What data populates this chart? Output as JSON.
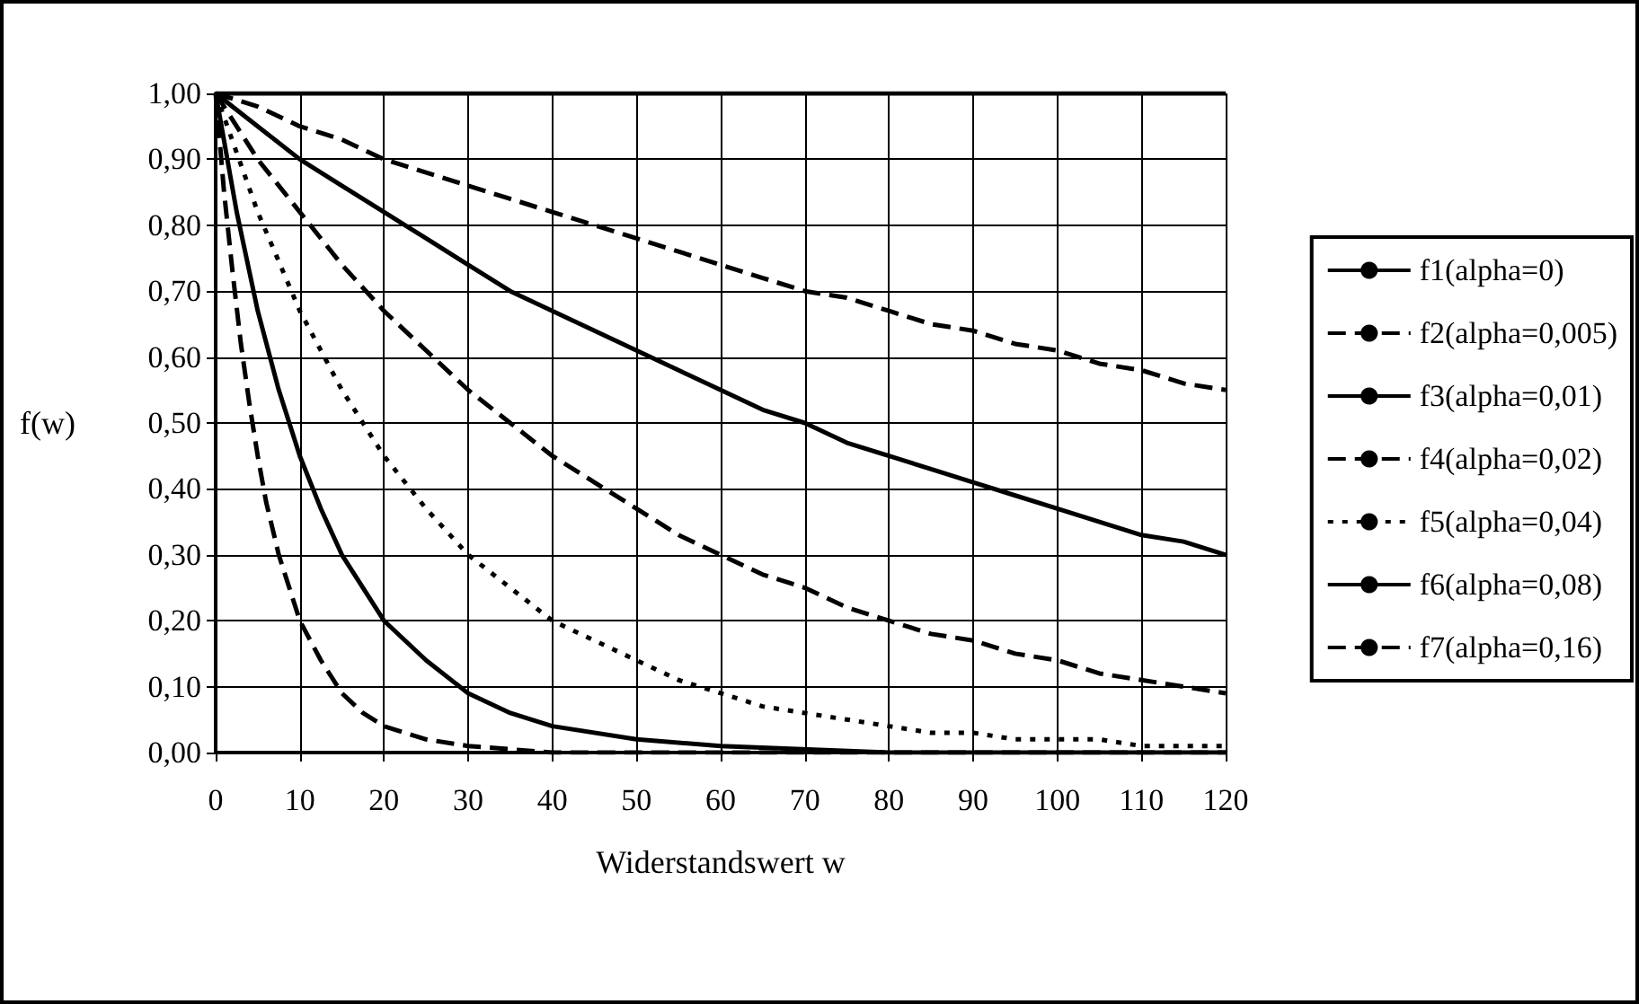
{
  "chart_data": {
    "type": "line",
    "xlabel": "Widerstandswert w",
    "ylabel": "f(w)",
    "x": [
      0,
      5,
      10,
      15,
      20,
      25,
      30,
      35,
      40,
      45,
      50,
      55,
      60,
      65,
      70,
      75,
      80,
      85,
      90,
      95,
      100,
      105,
      110,
      115,
      120
    ],
    "xlim": [
      0,
      120
    ],
    "xticks": [
      0,
      10,
      20,
      30,
      40,
      50,
      60,
      70,
      80,
      90,
      100,
      110,
      120
    ],
    "ylim": [
      0,
      1
    ],
    "yticks": [
      {
        "value": 0,
        "label": "0,00"
      },
      {
        "value": 0.1,
        "label": "0,10"
      },
      {
        "value": 0.2,
        "label": "0,20"
      },
      {
        "value": 0.3,
        "label": "0,30"
      },
      {
        "value": 0.4,
        "label": "0,40"
      },
      {
        "value": 0.5,
        "label": "0,50"
      },
      {
        "value": 0.6,
        "label": "0,60"
      },
      {
        "value": 0.7,
        "label": "0,70"
      },
      {
        "value": 0.8,
        "label": "0,80"
      },
      {
        "value": 0.9,
        "label": "0,90"
      },
      {
        "value": 1,
        "label": "1,00"
      }
    ],
    "grid": true,
    "legend": "right",
    "marker": "none",
    "series": [
      {
        "name": "f1(alpha=0)",
        "color": "#000000",
        "line_style": "solid",
        "values": [
          1,
          1,
          1,
          1,
          1,
          1,
          1,
          1,
          1,
          1,
          1,
          1,
          1,
          1,
          1,
          1,
          1,
          1,
          1,
          1,
          1,
          1,
          1,
          1,
          1
        ]
      },
      {
        "name": "f2(alpha=0,005)",
        "color": "#000000",
        "line_style": "dashed",
        "values": [
          1,
          0.98,
          0.95,
          0.93,
          0.9,
          0.88,
          0.86,
          0.84,
          0.82,
          0.8,
          0.78,
          0.76,
          0.74,
          0.72,
          0.7,
          0.69,
          0.67,
          0.65,
          0.64,
          0.62,
          0.61,
          0.59,
          0.58,
          0.56,
          0.55
        ]
      },
      {
        "name": "f3(alpha=0,01)",
        "color": "#000000",
        "line_style": "solid",
        "values": [
          1,
          0.95,
          0.9,
          0.86,
          0.82,
          0.78,
          0.74,
          0.7,
          0.67,
          0.64,
          0.61,
          0.58,
          0.55,
          0.52,
          0.5,
          0.47,
          0.45,
          0.43,
          0.41,
          0.39,
          0.37,
          0.35,
          0.33,
          0.32,
          0.3
        ]
      },
      {
        "name": "f4(alpha=0,02)",
        "color": "#000000",
        "line_style": "dashed",
        "values": [
          1,
          0.9,
          0.82,
          0.74,
          0.67,
          0.61,
          0.55,
          0.5,
          0.45,
          0.41,
          0.37,
          0.33,
          0.3,
          0.27,
          0.25,
          0.22,
          0.2,
          0.18,
          0.17,
          0.15,
          0.14,
          0.12,
          0.11,
          0.1,
          0.09
        ]
      },
      {
        "name": "f5(alpha=0,04)",
        "color": "#000000",
        "line_style": "dotted",
        "values": [
          1,
          0.82,
          0.67,
          0.55,
          0.45,
          0.37,
          0.3,
          0.25,
          0.2,
          0.17,
          0.14,
          0.11,
          0.09,
          0.07,
          0.06,
          0.05,
          0.04,
          0.03,
          0.03,
          0.02,
          0.02,
          0.02,
          0.01,
          0.01,
          0.01
        ]
      },
      {
        "name": "f6(alpha=0,08)",
        "color": "#000000",
        "line_style": "solid",
        "x": [
          0,
          2.5,
          5,
          7.5,
          10,
          12.5,
          15,
          20,
          25,
          30,
          35,
          40,
          50,
          60,
          80,
          100,
          120
        ],
        "values": [
          1,
          0.82,
          0.67,
          0.55,
          0.45,
          0.37,
          0.3,
          0.2,
          0.14,
          0.09,
          0.06,
          0.04,
          0.02,
          0.01,
          0,
          0,
          0
        ]
      },
      {
        "name": "f7(alpha=0,16)",
        "color": "#000000",
        "line_style": "dashed",
        "x": [
          0,
          1,
          2,
          3,
          4,
          5,
          6,
          7.5,
          10,
          12.5,
          15,
          17.5,
          20,
          25,
          30,
          40,
          60,
          80,
          100,
          120
        ],
        "values": [
          1,
          0.85,
          0.73,
          0.62,
          0.53,
          0.45,
          0.38,
          0.3,
          0.2,
          0.14,
          0.09,
          0.06,
          0.04,
          0.02,
          0.01,
          0,
          0,
          0,
          0,
          0
        ]
      }
    ]
  }
}
